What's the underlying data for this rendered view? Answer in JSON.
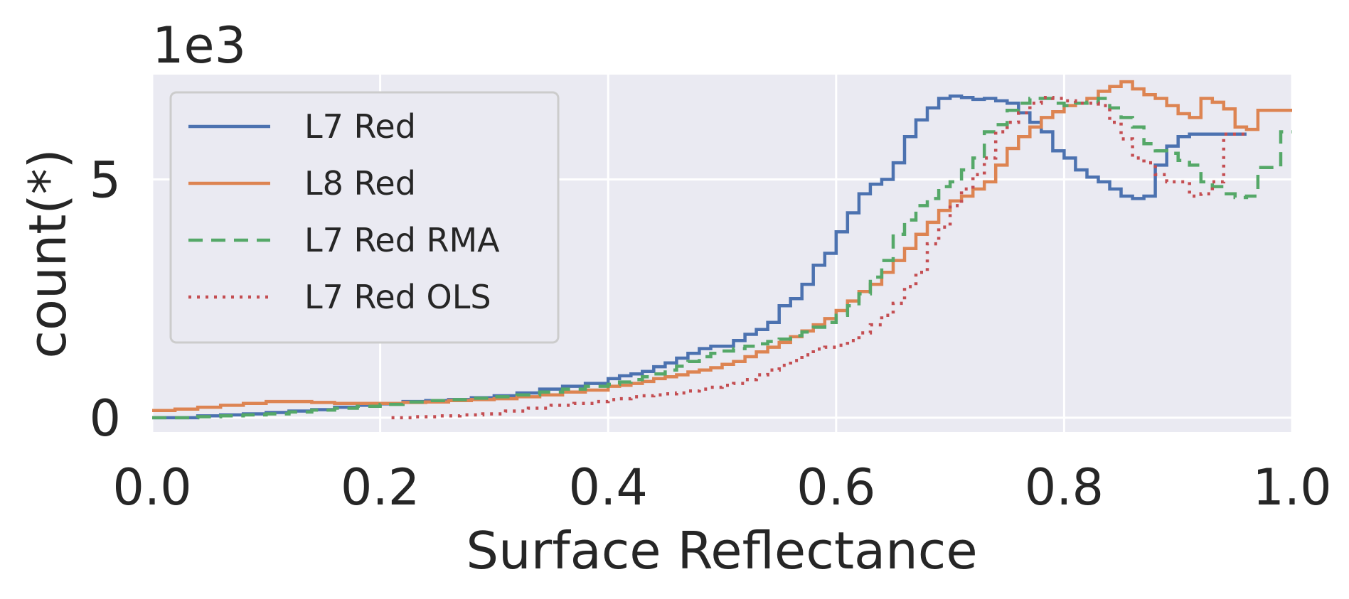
{
  "chart_data": {
    "type": "line",
    "xlabel": "Surface Reflectance",
    "ylabel": "count(*)",
    "y_offset_label": "1e3",
    "xlim": [
      0.0,
      1.0
    ],
    "ylim": [
      -0.3,
      7.2
    ],
    "x_ticks": [
      {
        "value": 0.0,
        "label": "0.0"
      },
      {
        "value": 0.2,
        "label": "0.2"
      },
      {
        "value": 0.4,
        "label": "0.4"
      },
      {
        "value": 0.6,
        "label": "0.6"
      },
      {
        "value": 0.8,
        "label": "0.8"
      },
      {
        "value": 1.0,
        "label": "1.0"
      }
    ],
    "y_ticks": [
      {
        "value": 0,
        "label": "0"
      },
      {
        "value": 5,
        "label": "5"
      }
    ],
    "grid": true,
    "step": true,
    "legend_position": "top-left",
    "colors": {
      "plot_background": "#eaeaf2",
      "grid": "#ffffff",
      "legend_background": "#eaeaf2",
      "legend_border": "#cccccc"
    },
    "series": [
      {
        "name": "L7 Red",
        "color": "#4c72b0",
        "dash": "solid",
        "x": [
          0.0,
          0.02,
          0.04,
          0.06,
          0.08,
          0.1,
          0.12,
          0.14,
          0.16,
          0.18,
          0.2,
          0.22,
          0.24,
          0.26,
          0.28,
          0.3,
          0.32,
          0.34,
          0.36,
          0.38,
          0.4,
          0.41,
          0.42,
          0.43,
          0.44,
          0.45,
          0.46,
          0.47,
          0.48,
          0.49,
          0.5,
          0.51,
          0.52,
          0.53,
          0.54,
          0.55,
          0.56,
          0.57,
          0.58,
          0.59,
          0.6,
          0.61,
          0.62,
          0.63,
          0.64,
          0.65,
          0.66,
          0.67,
          0.68,
          0.69,
          0.7,
          0.71,
          0.72,
          0.73,
          0.74,
          0.75,
          0.76,
          0.77,
          0.78,
          0.79,
          0.8,
          0.81,
          0.82,
          0.83,
          0.84,
          0.85,
          0.86,
          0.87,
          0.88,
          0.89,
          0.9,
          0.91,
          0.92,
          0.93,
          0.94
        ],
        "y": [
          0.0,
          0.0,
          0.04,
          0.06,
          0.08,
          0.11,
          0.14,
          0.17,
          0.22,
          0.26,
          0.29,
          0.34,
          0.36,
          0.38,
          0.42,
          0.46,
          0.52,
          0.6,
          0.66,
          0.72,
          0.82,
          0.88,
          0.92,
          0.97,
          1.07,
          1.15,
          1.25,
          1.35,
          1.45,
          1.5,
          1.5,
          1.62,
          1.75,
          1.85,
          2.0,
          2.35,
          2.5,
          2.8,
          3.2,
          3.45,
          3.9,
          4.3,
          4.7,
          4.9,
          5.0,
          5.35,
          5.9,
          6.25,
          6.5,
          6.7,
          6.75,
          6.72,
          6.68,
          6.7,
          6.65,
          6.6,
          6.4,
          6.2,
          6.0,
          5.6,
          5.45,
          5.2,
          5.05,
          4.95,
          4.8,
          4.65,
          4.6,
          4.65,
          5.3,
          5.7,
          5.9,
          5.95,
          5.95,
          5.95,
          5.95
        ]
      },
      {
        "name": "L8 Red",
        "color": "#dd8452",
        "dash": "solid",
        "x": [
          0.0,
          0.02,
          0.04,
          0.06,
          0.08,
          0.1,
          0.12,
          0.14,
          0.16,
          0.18,
          0.2,
          0.22,
          0.24,
          0.26,
          0.28,
          0.3,
          0.32,
          0.34,
          0.36,
          0.38,
          0.4,
          0.41,
          0.42,
          0.43,
          0.44,
          0.45,
          0.46,
          0.47,
          0.48,
          0.49,
          0.5,
          0.51,
          0.52,
          0.53,
          0.54,
          0.55,
          0.56,
          0.57,
          0.58,
          0.59,
          0.6,
          0.61,
          0.62,
          0.63,
          0.64,
          0.65,
          0.66,
          0.67,
          0.68,
          0.69,
          0.7,
          0.71,
          0.72,
          0.73,
          0.74,
          0.75,
          0.76,
          0.77,
          0.78,
          0.79,
          0.8,
          0.81,
          0.82,
          0.83,
          0.84,
          0.85,
          0.86,
          0.87,
          0.88,
          0.89,
          0.9,
          0.91,
          0.92,
          0.93,
          0.94,
          0.95,
          0.96,
          0.97,
          0.98,
          0.99
        ],
        "y": [
          0.15,
          0.18,
          0.22,
          0.26,
          0.3,
          0.34,
          0.34,
          0.32,
          0.3,
          0.3,
          0.3,
          0.32,
          0.33,
          0.36,
          0.38,
          0.4,
          0.44,
          0.48,
          0.54,
          0.58,
          0.66,
          0.68,
          0.72,
          0.76,
          0.82,
          0.86,
          0.9,
          0.96,
          1.0,
          1.05,
          1.12,
          1.18,
          1.28,
          1.38,
          1.48,
          1.58,
          1.7,
          1.82,
          1.95,
          2.08,
          2.25,
          2.45,
          2.65,
          2.8,
          3.05,
          3.3,
          3.55,
          3.85,
          4.1,
          4.35,
          4.55,
          4.65,
          4.8,
          4.95,
          5.3,
          5.65,
          5.9,
          6.1,
          6.3,
          6.42,
          6.55,
          6.6,
          6.7,
          6.85,
          6.95,
          7.05,
          6.9,
          6.78,
          6.7,
          6.55,
          6.38,
          6.3,
          6.7,
          6.62,
          6.48,
          6.1,
          6.05,
          6.45,
          6.45,
          6.45
        ]
      },
      {
        "name": "L7 Red RMA",
        "color": "#55a868",
        "dash": "dashed",
        "x": [
          0.0,
          0.02,
          0.04,
          0.06,
          0.08,
          0.1,
          0.12,
          0.14,
          0.16,
          0.18,
          0.2,
          0.22,
          0.24,
          0.26,
          0.28,
          0.3,
          0.32,
          0.34,
          0.36,
          0.38,
          0.4,
          0.41,
          0.42,
          0.43,
          0.44,
          0.45,
          0.46,
          0.47,
          0.48,
          0.49,
          0.5,
          0.51,
          0.52,
          0.53,
          0.54,
          0.55,
          0.56,
          0.57,
          0.58,
          0.59,
          0.6,
          0.61,
          0.62,
          0.63,
          0.64,
          0.65,
          0.66,
          0.67,
          0.68,
          0.69,
          0.7,
          0.71,
          0.72,
          0.73,
          0.74,
          0.75,
          0.76,
          0.77,
          0.78,
          0.79,
          0.8,
          0.81,
          0.82,
          0.83,
          0.84,
          0.85,
          0.86,
          0.87,
          0.88,
          0.89,
          0.9,
          0.91,
          0.92,
          0.93,
          0.94,
          0.95,
          0.96,
          0.97,
          0.98,
          0.99
        ],
        "y": [
          0.0,
          0.0,
          0.02,
          0.04,
          0.06,
          0.08,
          0.12,
          0.16,
          0.2,
          0.24,
          0.28,
          0.33,
          0.36,
          0.38,
          0.41,
          0.44,
          0.48,
          0.54,
          0.6,
          0.66,
          0.7,
          0.75,
          0.8,
          0.86,
          0.92,
          1.0,
          1.08,
          1.18,
          1.28,
          1.35,
          1.4,
          1.45,
          1.5,
          1.55,
          1.6,
          1.65,
          1.72,
          1.8,
          1.9,
          2.0,
          2.15,
          2.35,
          2.6,
          2.95,
          3.3,
          3.85,
          4.15,
          4.45,
          4.6,
          4.85,
          4.95,
          5.2,
          5.45,
          6.0,
          6.15,
          6.45,
          6.6,
          6.7,
          6.7,
          6.6,
          6.55,
          6.6,
          6.62,
          6.7,
          6.5,
          6.3,
          6.1,
          5.75,
          5.6,
          5.55,
          5.4,
          5.3,
          4.95,
          4.85,
          4.7,
          4.62,
          4.65,
          5.25,
          5.25,
          6.0
        ]
      },
      {
        "name": "L7 Red OLS",
        "color": "#c44e52",
        "dash": "dotted",
        "x": [
          0.21,
          0.23,
          0.25,
          0.27,
          0.29,
          0.31,
          0.33,
          0.35,
          0.37,
          0.39,
          0.4,
          0.41,
          0.42,
          0.43,
          0.44,
          0.45,
          0.46,
          0.47,
          0.48,
          0.49,
          0.5,
          0.51,
          0.52,
          0.53,
          0.54,
          0.55,
          0.56,
          0.57,
          0.58,
          0.59,
          0.6,
          0.61,
          0.62,
          0.63,
          0.64,
          0.65,
          0.66,
          0.67,
          0.68,
          0.69,
          0.7,
          0.71,
          0.72,
          0.73,
          0.74,
          0.75,
          0.76,
          0.77,
          0.78,
          0.79,
          0.8,
          0.81,
          0.82,
          0.83,
          0.84,
          0.85,
          0.86,
          0.87,
          0.88,
          0.89,
          0.9,
          0.91,
          0.92,
          0.93,
          0.94
        ],
        "y": [
          0.0,
          0.02,
          0.04,
          0.06,
          0.08,
          0.14,
          0.2,
          0.26,
          0.3,
          0.34,
          0.38,
          0.4,
          0.44,
          0.46,
          0.48,
          0.5,
          0.52,
          0.56,
          0.6,
          0.64,
          0.68,
          0.72,
          0.8,
          0.9,
          1.0,
          1.1,
          1.2,
          1.32,
          1.44,
          1.48,
          1.52,
          1.62,
          1.78,
          1.95,
          2.15,
          2.4,
          2.75,
          3.05,
          3.65,
          4.0,
          4.45,
          4.8,
          5.1,
          5.45,
          6.0,
          6.2,
          6.4,
          6.6,
          6.72,
          6.7,
          6.65,
          6.6,
          6.6,
          6.55,
          6.2,
          5.85,
          5.45,
          5.35,
          5.1,
          4.95,
          4.95,
          4.65,
          4.7,
          4.95,
          5.95
        ]
      }
    ]
  }
}
